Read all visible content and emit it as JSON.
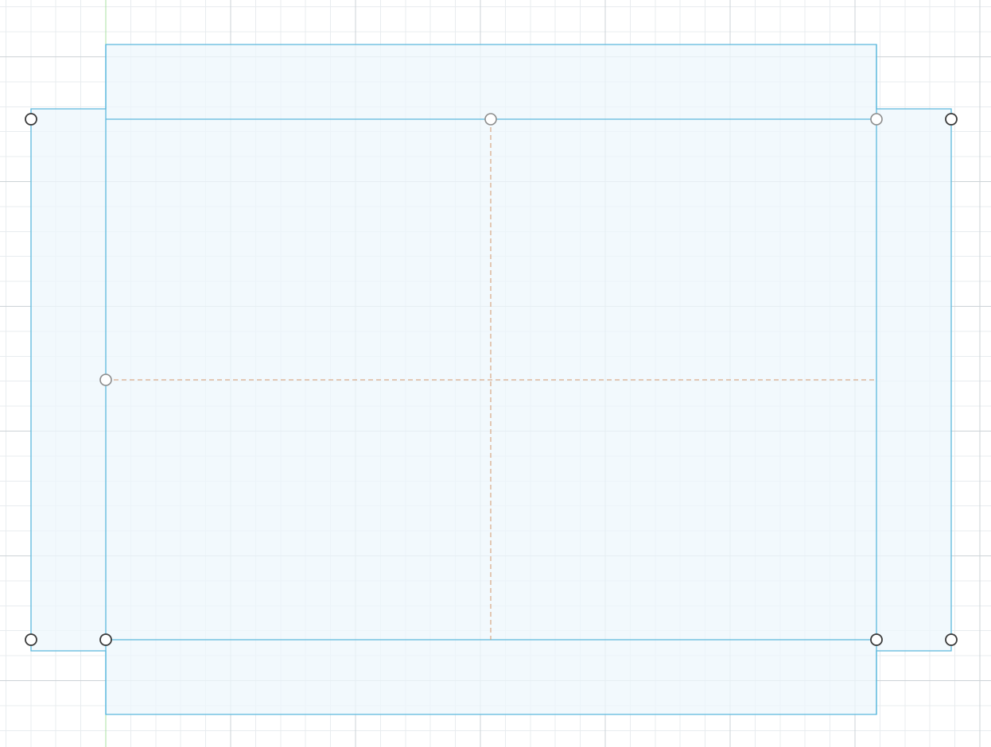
{
  "canvas": {
    "background": "#ffffff",
    "grid_minor_color": "#e8ecef",
    "grid_major_color": "#cdd3d7",
    "origin_axis_color": "#a8e0a0"
  },
  "sketch": {
    "fill_color": "#eef7fc",
    "profile_color": "#5bb8dc",
    "construction_color": "#d4966a",
    "point_fill": "#ffffff",
    "point_stroke_active": "#3a3a3a",
    "point_stroke_muted": "#8c8c8c",
    "elements": [
      "outer-profile",
      "main-rectangle",
      "left-flap",
      "right-flap",
      "top-flap",
      "bottom-flap",
      "vertical-centerline",
      "horizontal-centerline",
      "corner-points",
      "midpoint-handles"
    ]
  }
}
